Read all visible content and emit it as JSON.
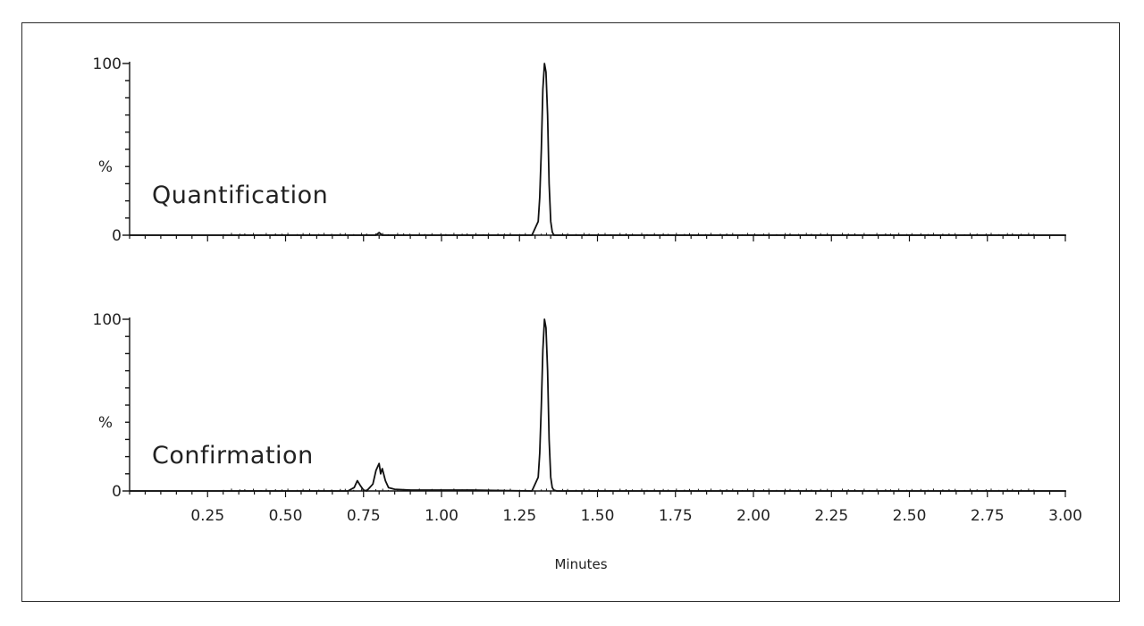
{
  "chart_data": {
    "type": "line",
    "xlabel": "Minutes",
    "xlim": [
      0,
      3.0
    ],
    "x_ticks": [
      "0.25",
      "0.50",
      "0.75",
      "1.00",
      "1.25",
      "1.50",
      "1.75",
      "2.00",
      "2.25",
      "2.50",
      "2.75",
      "3.00"
    ],
    "ylabel": "%",
    "ylim": [
      0,
      100
    ],
    "y_ticks": [
      "0",
      "100"
    ],
    "grid": false,
    "line_color": "#111111",
    "series": [
      {
        "name": "Quantification",
        "x": [
          0,
          0.25,
          0.5,
          0.7,
          0.79,
          0.8,
          0.81,
          0.9,
          1.1,
          1.29,
          1.31,
          1.315,
          1.32,
          1.325,
          1.33,
          1.335,
          1.34,
          1.345,
          1.35,
          1.355,
          1.36,
          1.37,
          1.4,
          1.6,
          2.0,
          2.5,
          3.0
        ],
        "y": [
          0,
          0,
          0,
          0,
          0,
          1.5,
          0,
          0,
          0,
          0,
          8,
          22,
          50,
          85,
          100,
          95,
          70,
          30,
          8,
          2,
          0,
          0,
          0,
          0,
          0,
          0,
          0
        ]
      },
      {
        "name": "Confirmation",
        "x": [
          0,
          0.25,
          0.5,
          0.7,
          0.72,
          0.73,
          0.74,
          0.75,
          0.76,
          0.78,
          0.79,
          0.8,
          0.805,
          0.81,
          0.82,
          0.83,
          0.85,
          0.9,
          1.1,
          1.29,
          1.31,
          1.315,
          1.32,
          1.325,
          1.33,
          1.335,
          1.34,
          1.345,
          1.35,
          1.355,
          1.36,
          1.37,
          1.4,
          1.6,
          2.0,
          2.5,
          3.0
        ],
        "y": [
          0,
          0,
          0,
          0,
          2,
          6,
          3,
          0.5,
          0,
          4,
          12,
          16,
          10,
          13,
          6,
          2,
          1,
          0.5,
          0.5,
          0,
          8,
          22,
          50,
          82,
          100,
          95,
          70,
          30,
          8,
          2,
          0.5,
          0,
          0,
          0,
          0,
          0,
          0
        ]
      }
    ]
  }
}
